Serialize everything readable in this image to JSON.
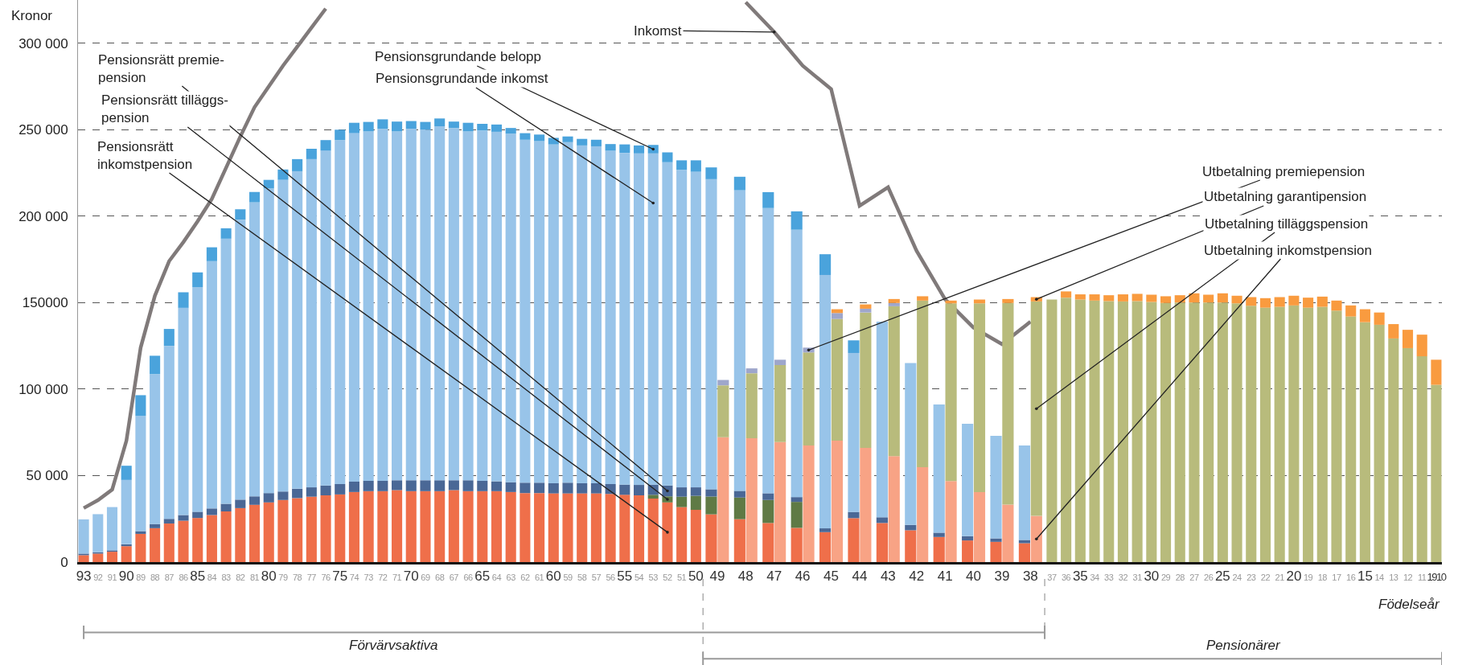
{
  "chart_data": [
    {
      "type": "bar",
      "stacked": true,
      "xlabel": "Födelseår",
      "ylabel": "Kronor",
      "grid": "y",
      "categories": [
        "93",
        "92",
        "91",
        "90",
        "89",
        "88",
        "87",
        "86",
        "85",
        "84",
        "83",
        "82",
        "81",
        "80",
        "79",
        "78",
        "77",
        "76",
        "75",
        "74",
        "73",
        "72",
        "71",
        "70",
        "69",
        "68",
        "67",
        "66",
        "65",
        "64",
        "63",
        "62",
        "61",
        "60",
        "59",
        "58",
        "57",
        "56",
        "55",
        "54",
        "53",
        "52",
        "51",
        "50",
        "49",
        "48",
        "47",
        "46",
        "45",
        "44",
        "43",
        "42",
        "41",
        "40",
        "39",
        "38",
        "37",
        "36",
        "35",
        "34",
        "33",
        "32",
        "31",
        "30",
        "29",
        "28",
        "27",
        "26",
        "25",
        "24",
        "23",
        "22",
        "21",
        "20",
        "19",
        "18",
        "17",
        "16",
        "15",
        "14",
        "13",
        "12",
        "11",
        "1910"
      ],
      "ylim": [
        0,
        325000
      ],
      "yticks": [
        0,
        {
          "value": 50000,
          "label": "50 000"
        },
        {
          "value": 100000,
          "label": "100 000"
        },
        {
          "value": 150000,
          "label": "150000"
        },
        {
          "value": 200000,
          "label": "200 000"
        },
        {
          "value": 250000,
          "label": "250 000"
        },
        {
          "value": 300000,
          "label": "300 000"
        }
      ],
      "series": [
        {
          "name": "Pensionsrätt\ninkomstpension",
          "color": "#ef6f4a",
          "values": [
            4000,
            4900,
            6000,
            9200,
            16300,
            19600,
            22300,
            23900,
            25500,
            27200,
            29300,
            31200,
            33100,
            34500,
            35900,
            37000,
            37800,
            38600,
            39100,
            40500,
            41000,
            41000,
            41600,
            41000,
            41000,
            41000,
            41600,
            41000,
            41000,
            41000,
            40500,
            39900,
            39900,
            39700,
            39700,
            39700,
            39700,
            39400,
            38900,
            38600,
            36700,
            34500,
            31800,
            30200,
            27600,
            24800,
            22600,
            19800,
            17300,
            25400,
            22600,
            18400,
            14500,
            12500,
            11700,
            10900,
            null,
            null,
            null,
            null,
            null,
            null,
            null,
            null,
            null,
            null,
            null,
            null,
            null,
            null,
            null,
            null,
            null,
            null,
            null,
            null,
            null,
            null,
            null,
            null,
            null,
            null,
            null,
            null
          ]
        },
        {
          "name": "Pensionsrätt tilläggs-\npension",
          "color": "#5f7a45",
          "values": [
            null,
            null,
            null,
            null,
            null,
            null,
            null,
            null,
            null,
            null,
            null,
            null,
            null,
            null,
            null,
            null,
            null,
            null,
            null,
            null,
            null,
            null,
            null,
            null,
            null,
            null,
            null,
            null,
            null,
            null,
            null,
            null,
            null,
            null,
            null,
            null,
            null,
            null,
            null,
            null,
            2200,
            3500,
            6000,
            8100,
            10300,
            12500,
            13300,
            15000,
            null,
            null,
            null,
            null,
            null,
            null,
            null,
            null,
            null,
            null,
            null,
            null,
            null,
            null,
            null,
            null,
            null,
            null,
            null,
            null,
            null,
            null,
            null,
            null,
            null,
            null,
            null,
            null,
            null,
            null,
            null,
            null,
            null,
            null,
            null,
            null
          ]
        },
        {
          "name": "Pensionsrätt premie-\npension",
          "color": "#4a6896",
          "values": [
            900,
            800,
            800,
            1100,
            1600,
            2400,
            2700,
            3300,
            3600,
            3800,
            4400,
            4900,
            4900,
            5400,
            4900,
            5400,
            5400,
            5700,
            6000,
            6000,
            6000,
            6000,
            5700,
            6300,
            6300,
            6300,
            5700,
            6300,
            6000,
            5700,
            5700,
            6000,
            6000,
            5900,
            6200,
            5900,
            5900,
            5700,
            5900,
            6000,
            5900,
            6300,
            5400,
            4900,
            4200,
            3900,
            3900,
            2800,
            2200,
            3600,
            3300,
            3100,
            2500,
            2500,
            2000,
            1900,
            null,
            null,
            null,
            null,
            null,
            null,
            null,
            null,
            null,
            null,
            null,
            null,
            null,
            null,
            null,
            null,
            null,
            null,
            null,
            null,
            null,
            null,
            null,
            null,
            null,
            null,
            null,
            null
          ]
        },
        {
          "name": "Pensionsgrundande inkomst",
          "color": "#98c4e9",
          "values": [
            19800,
            22000,
            25000,
            37200,
            66600,
            86700,
            100000,
            119800,
            129900,
            143000,
            153300,
            161900,
            170000,
            176100,
            180200,
            183600,
            189800,
            193700,
            198900,
            201500,
            202000,
            203500,
            201700,
            203200,
            202700,
            204700,
            203700,
            201700,
            202500,
            202100,
            201500,
            198300,
            197500,
            195900,
            196900,
            195300,
            194800,
            192800,
            191800,
            191700,
            191500,
            186900,
            183600,
            182500,
            179300,
            173800,
            164900,
            154600,
            146500,
            91900,
            113100,
            93600,
            74100,
            65000,
            59300,
            54600,
            null,
            null,
            null,
            null,
            null,
            null,
            null,
            null,
            null,
            null,
            null,
            null,
            null,
            null,
            null,
            null,
            null,
            null,
            null,
            null,
            null,
            null,
            null,
            null,
            null,
            null,
            null,
            null
          ]
        },
        {
          "name": "Pensionsgrundande belopp",
          "color": "#4aa3dc",
          "values": [
            null,
            null,
            null,
            8200,
            12000,
            10600,
            9800,
            9000,
            8500,
            8000,
            6000,
            6000,
            6000,
            5000,
            6000,
            7000,
            6000,
            6000,
            6000,
            6000,
            5500,
            5500,
            5700,
            4500,
            4500,
            4500,
            3700,
            5000,
            3900,
            4200,
            3300,
            3800,
            3800,
            3800,
            3300,
            3800,
            3800,
            3800,
            4900,
            4600,
            4900,
            5700,
            5500,
            6600,
            6800,
            7800,
            9200,
            10600,
            12000,
            7300,
            null,
            null,
            null,
            null,
            null,
            null,
            null,
            null,
            null,
            null,
            null,
            null,
            null,
            null,
            null,
            null,
            null,
            null,
            null,
            null,
            null,
            null,
            null,
            null,
            null,
            null,
            null,
            null,
            null,
            null,
            null,
            null,
            null,
            null
          ]
        },
        {
          "name": "Inkomst",
          "type": "line",
          "color": "#807a7a",
          "values": [
            31200,
            35800,
            41900,
            70200,
            124000,
            154000,
            174000,
            185000,
            197000,
            210000,
            228000,
            246000,
            263000,
            275000,
            287000,
            298000,
            309000,
            320000,
            null,
            null,
            null,
            null,
            null,
            null,
            null,
            null,
            null,
            null,
            null,
            null,
            null,
            null,
            null,
            null,
            null,
            null,
            null,
            null,
            null,
            null,
            null,
            null,
            null,
            null,
            null,
            323700,
            306500,
            287000,
            273500,
            206000,
            216700,
            180000,
            152000,
            135600,
            126000,
            139000,
            null,
            null,
            null,
            null,
            null,
            null,
            null,
            null,
            null,
            null,
            null,
            null,
            null,
            null,
            null,
            null,
            null,
            null,
            null,
            null,
            null,
            null,
            null,
            null,
            null,
            null,
            null,
            null
          ]
        }
      ],
      "annotations": [
        "Förvärvsaktiva",
        "Pensionärer"
      ]
    },
    {
      "type": "bar",
      "stacked": true,
      "tick_labels": false,
      "categories": [
        "93",
        "92",
        "91",
        "90",
        "89",
        "88",
        "87",
        "86",
        "85",
        "84",
        "83",
        "82",
        "81",
        "80",
        "79",
        "78",
        "77",
        "76",
        "75",
        "74",
        "73",
        "72",
        "71",
        "70",
        "69",
        "68",
        "67",
        "66",
        "65",
        "64",
        "63",
        "62",
        "61",
        "60",
        "59",
        "58",
        "57",
        "56",
        "55",
        "54",
        "53",
        "52",
        "51",
        "50",
        "49",
        "48",
        "47",
        "46",
        "45",
        "44",
        "43",
        "42",
        "41",
        "40",
        "39",
        "38",
        "37",
        "36",
        "35",
        "34",
        "33",
        "32",
        "31",
        "30",
        "29",
        "28",
        "27",
        "26",
        "25",
        "24",
        "23",
        "22",
        "21",
        "20",
        "19",
        "18",
        "17",
        "16",
        "15",
        "14",
        "13",
        "12",
        "11",
        "1910"
      ],
      "ylim": [
        0,
        325000
      ],
      "series": [
        {
          "name": "Utbetalning inkomstpension",
          "color": "#f8a385",
          "values": [
            null,
            null,
            null,
            null,
            null,
            null,
            null,
            null,
            null,
            null,
            null,
            null,
            null,
            null,
            null,
            null,
            null,
            null,
            null,
            null,
            null,
            null,
            null,
            null,
            null,
            null,
            null,
            null,
            null,
            null,
            null,
            null,
            null,
            null,
            null,
            null,
            null,
            null,
            null,
            null,
            null,
            null,
            null,
            null,
            72200,
            71600,
            69400,
            67400,
            70200,
            66000,
            61300,
            54900,
            46800,
            40400,
            33200,
            26700,
            null,
            null,
            null,
            null,
            null,
            null,
            null,
            null,
            null,
            null,
            null,
            null,
            null,
            null,
            null,
            null,
            null,
            null,
            null,
            null,
            null,
            null,
            null,
            null,
            null,
            null,
            null,
            null
          ]
        },
        {
          "name": "Utbetalning tilläggspension",
          "color": "#b8bb7c",
          "values": [
            null,
            null,
            null,
            null,
            null,
            null,
            null,
            null,
            null,
            null,
            null,
            null,
            null,
            null,
            null,
            null,
            null,
            null,
            null,
            null,
            null,
            null,
            null,
            null,
            null,
            null,
            null,
            null,
            null,
            null,
            null,
            null,
            null,
            null,
            null,
            null,
            null,
            null,
            null,
            null,
            null,
            null,
            null,
            null,
            30000,
            37600,
            44500,
            53800,
            70400,
            78300,
            86600,
            96300,
            102800,
            109200,
            116600,
            124000,
            151800,
            152900,
            151800,
            151200,
            150900,
            150700,
            150900,
            150400,
            149800,
            150100,
            150100,
            150100,
            150100,
            149600,
            148200,
            147100,
            147600,
            148400,
            147100,
            147600,
            145400,
            142000,
            138700,
            137200,
            129300,
            123700,
            119000,
            102500
          ]
        },
        {
          "name": "Utbetalning premiepension",
          "color": "#9ea6cb",
          "values": [
            null,
            null,
            null,
            null,
            null,
            null,
            null,
            null,
            null,
            null,
            null,
            null,
            null,
            null,
            null,
            null,
            null,
            null,
            null,
            null,
            null,
            null,
            null,
            null,
            null,
            null,
            null,
            null,
            null,
            null,
            null,
            null,
            null,
            null,
            null,
            null,
            null,
            null,
            null,
            null,
            null,
            null,
            null,
            null,
            3100,
            2800,
            3100,
            2800,
            3400,
            2200,
            1900,
            null,
            null,
            null,
            null,
            null,
            null,
            null,
            null,
            null,
            null,
            null,
            null,
            null,
            null,
            null,
            null,
            null,
            null,
            null,
            null,
            null,
            null,
            null,
            null,
            null,
            null,
            null,
            null,
            null,
            null,
            null,
            null,
            null
          ]
        },
        {
          "name": "Utbetalning garantipension",
          "color": "#f99b3f",
          "values": [
            null,
            null,
            null,
            null,
            null,
            null,
            null,
            null,
            null,
            null,
            null,
            null,
            null,
            null,
            null,
            null,
            null,
            null,
            null,
            null,
            null,
            null,
            null,
            null,
            null,
            null,
            null,
            null,
            null,
            null,
            null,
            null,
            null,
            null,
            null,
            null,
            null,
            null,
            null,
            null,
            null,
            null,
            null,
            null,
            null,
            null,
            null,
            null,
            2200,
            2500,
            2300,
            2500,
            1600,
            2200,
            2300,
            2500,
            null,
            3600,
            3000,
            3600,
            3400,
            4100,
            4200,
            4200,
            3900,
            4200,
            5300,
            4500,
            5300,
            4400,
            5000,
            5500,
            5600,
            5600,
            5800,
            5900,
            5800,
            6400,
            7500,
            7100,
            8300,
            10600,
            12500,
            14500
          ]
        }
      ]
    }
  ]
}
